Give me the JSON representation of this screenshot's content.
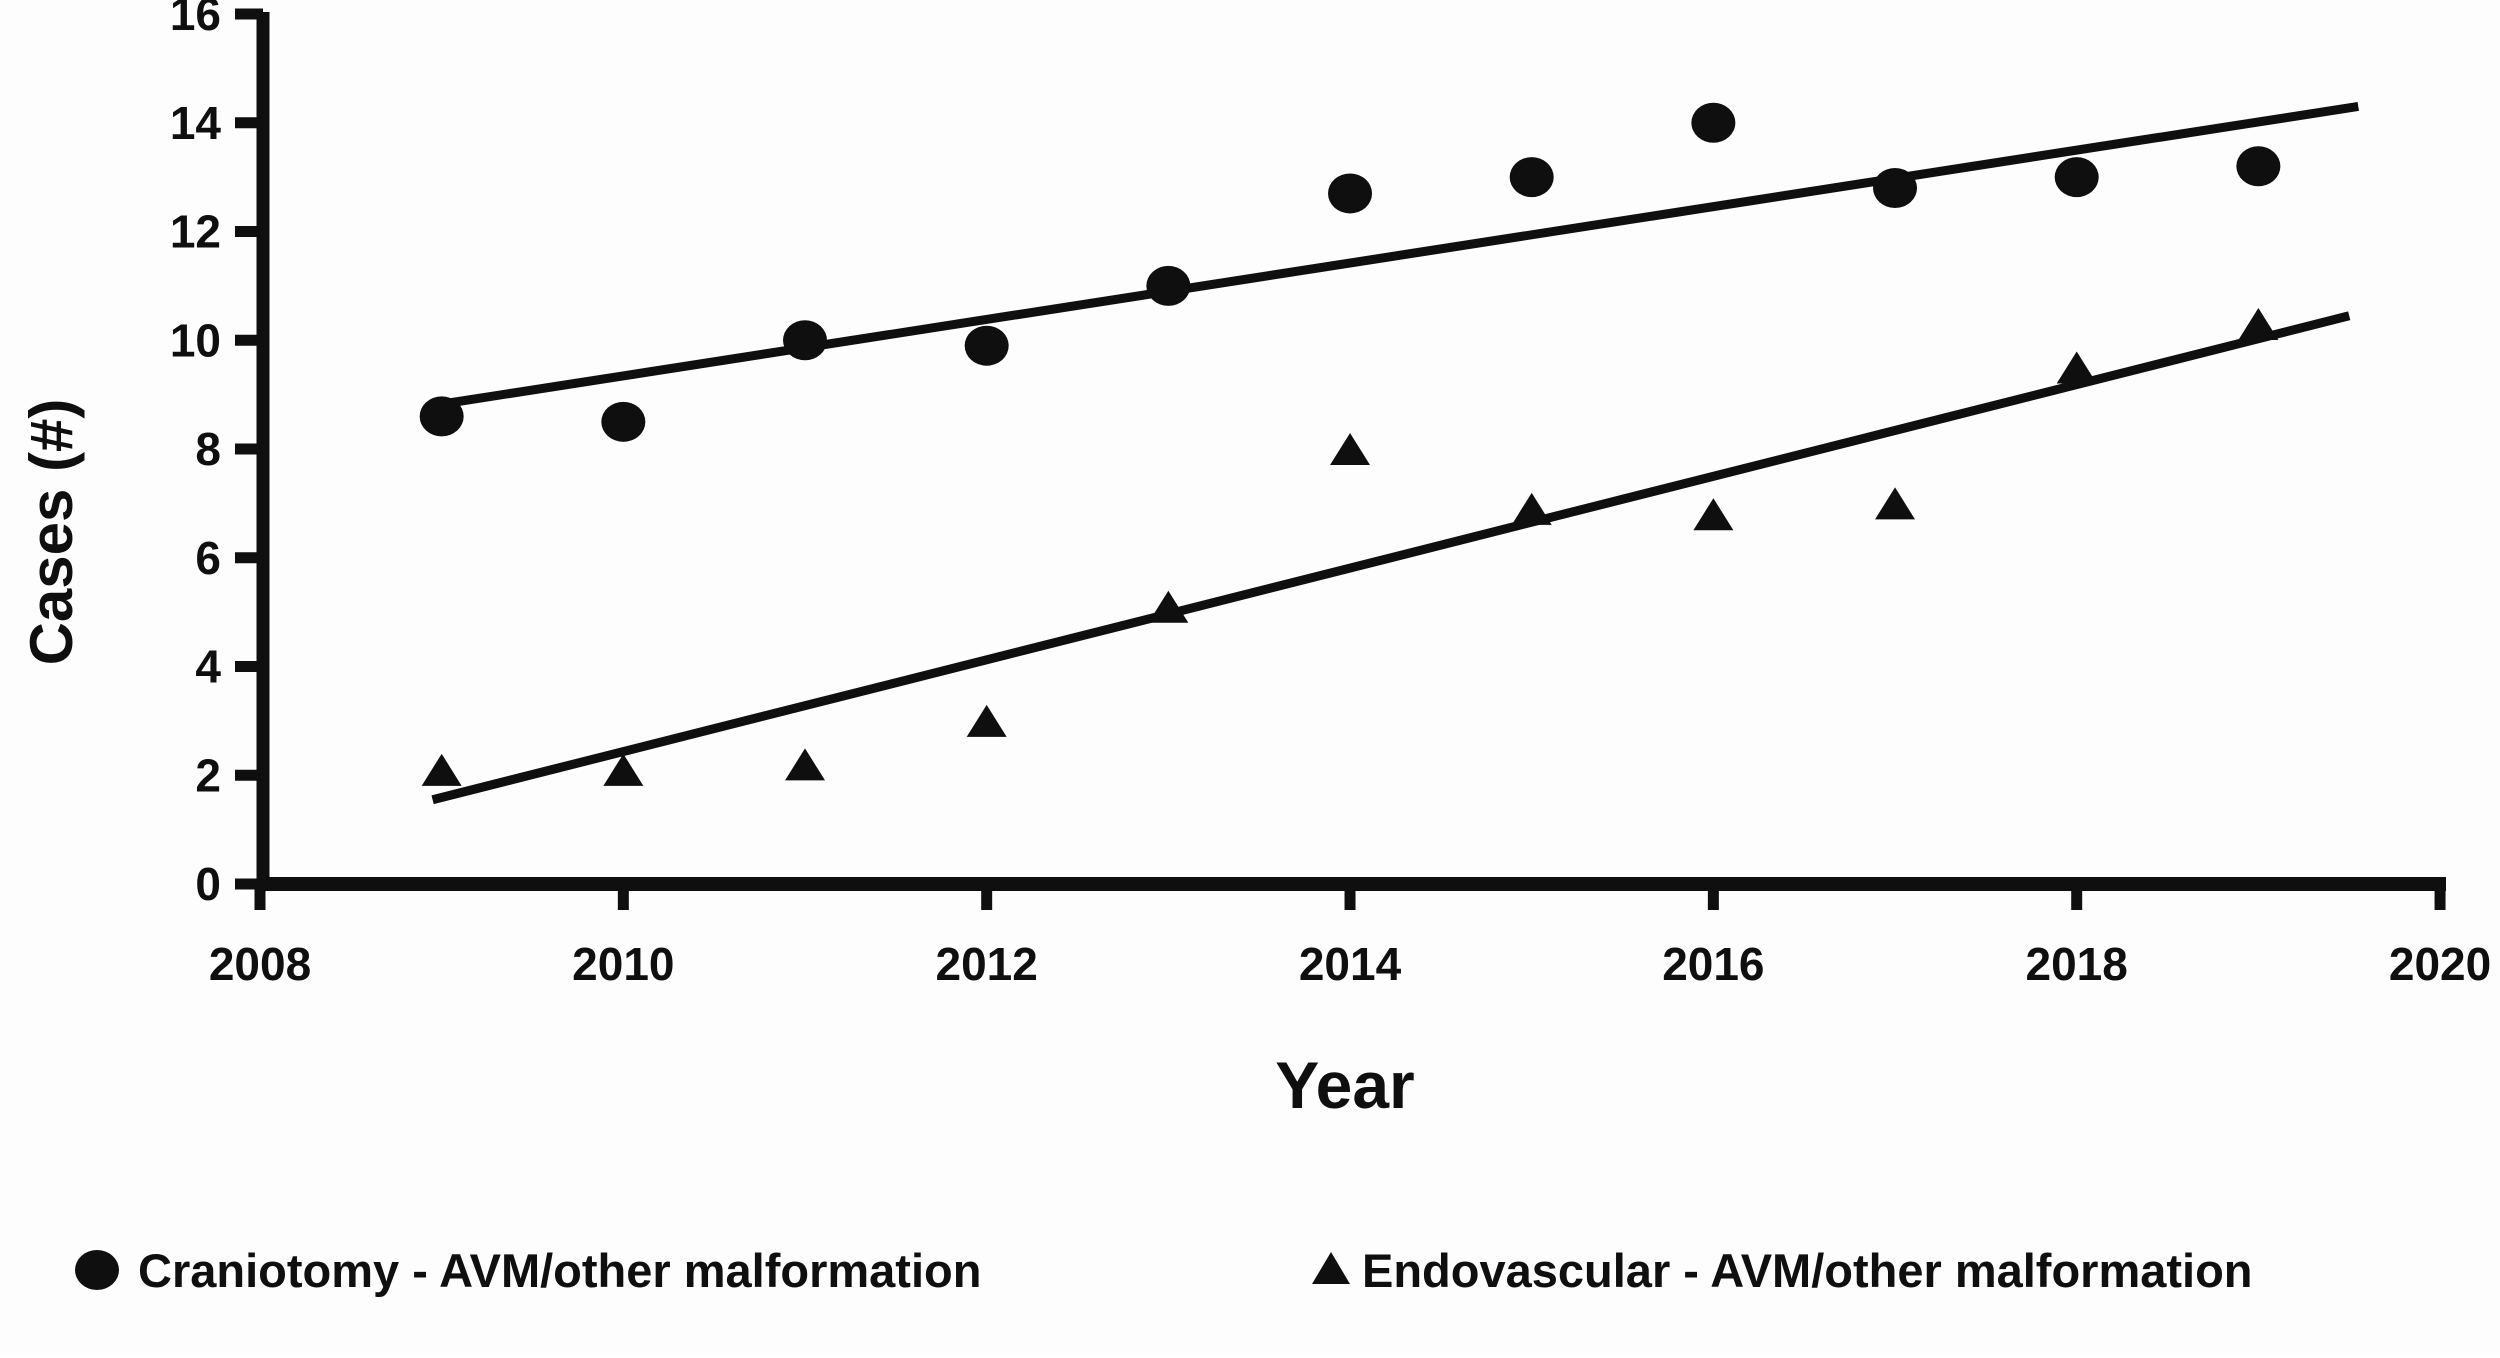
{
  "figure": {
    "background": "#fdfdfd",
    "ink_color": "#0f0f0f"
  },
  "chart_data": {
    "type": "scatter",
    "title": "",
    "xlabel": "Year",
    "ylabel": "Cases (#)",
    "xlim": [
      2008,
      2020.35
    ],
    "ylim": [
      0,
      16
    ],
    "grid": false,
    "x_tick_labels": [
      "2008",
      "2010",
      "2012",
      "2014",
      "2016",
      "2018",
      "2020"
    ],
    "x_tick_values": [
      2008,
      2010,
      2012,
      2014,
      2016,
      2018,
      2020
    ],
    "y_tick_labels": [
      "0",
      "2",
      "4",
      "6",
      "8",
      "10",
      "12",
      "14",
      "16"
    ],
    "y_tick_values": [
      0,
      2,
      4,
      6,
      8,
      10,
      12,
      14,
      16
    ],
    "x": [
      2009,
      2010,
      2011,
      2012,
      2013,
      2014,
      2015,
      2016,
      2017,
      2018,
      2019
    ],
    "series": [
      {
        "name": "Craniotomy - AVM/other malformation",
        "marker": "circle",
        "values": [
          8.6,
          8.5,
          10.0,
          9.9,
          11.0,
          12.7,
          13.0,
          14.0,
          12.8,
          13.0,
          13.2
        ],
        "trendline": {
          "x1": 2008.95,
          "y1": 8.8,
          "x2": 2019.55,
          "y2": 14.3
        }
      },
      {
        "name": "Endovascular - AVM/other malformation",
        "marker": "triangle",
        "values": [
          2.1,
          2.1,
          2.2,
          3.0,
          5.1,
          8.0,
          6.9,
          6.8,
          7.0,
          9.5,
          10.3
        ],
        "trendline": {
          "x1": 2008.95,
          "y1": 1.55,
          "x2": 2019.5,
          "y2": 10.45
        }
      }
    ],
    "legend_position": "bottom"
  }
}
